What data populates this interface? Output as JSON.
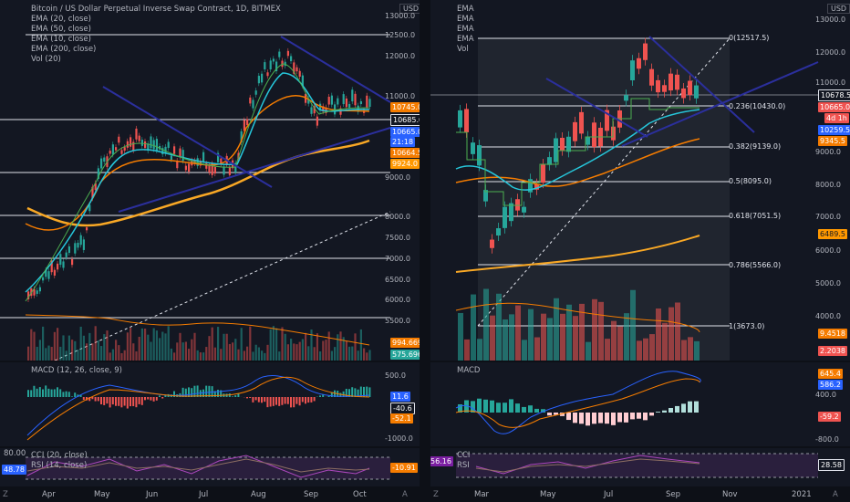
{
  "left": {
    "title": "Bitcoin / US Dollar Perpetual Inverse Swap Contract, 1D, BITMEX",
    "currency": "USD",
    "legend": [
      "EMA (20, close)",
      "EMA (50, close)",
      "EMA (10, close)",
      "EMA (200, close)",
      "Vol (20)"
    ],
    "price_ticks": [
      "13000.0",
      "12500.0",
      "12000.0",
      "11000.0",
      "9000.0",
      "8000.0",
      "7500.0",
      "7000.0",
      "6500.0",
      "6000.0",
      "5500.0"
    ],
    "price_tags": [
      {
        "text": "10745.0",
        "color": "#f57c00"
      },
      {
        "text": "10685.0",
        "color": "#131722"
      },
      {
        "text": "10665.0",
        "color": "#131722"
      },
      {
        "text": "21:18",
        "color": "#131722"
      },
      {
        "text": "10664.5",
        "color": "#f57c00"
      },
      {
        "text": "9924.0",
        "color": "#ff9800"
      },
      {
        "text": "994.669M",
        "color": "#f57c00"
      },
      {
        "text": "575.696M",
        "color": "#26a69a"
      }
    ],
    "macd_label": "MACD (12, 26, close, 9)",
    "macd_ticks": [
      "500.0",
      "-1000.0"
    ],
    "macd_tags": [
      {
        "text": "11.6",
        "color": "#2962ff"
      },
      {
        "text": "-40.6",
        "color": "#131722"
      },
      {
        "text": "-52.1",
        "color": "#f57c00"
      }
    ],
    "osc_label_1": "CCI (20, close)",
    "osc_label_2": "RSI (14, close)",
    "osc_left_top": "80.00",
    "osc_left_tag": "48.78",
    "osc_right_tag": "-10.91",
    "months": [
      "Apr",
      "May",
      "Jun",
      "Jul",
      "Aug",
      "Sep",
      "Oct"
    ]
  },
  "right": {
    "legend": [
      "EMA",
      "EMA",
      "EMA",
      "EMA",
      "Vol"
    ],
    "currency": "USD",
    "price_ticks": [
      "13000.0",
      "12000.0",
      "11000.0",
      "9000.0",
      "8000.0",
      "7000.0",
      "6000.0",
      "5000.0",
      "4000.0"
    ],
    "price_tags": [
      {
        "text": "10678.5",
        "color": "#131722"
      },
      {
        "text": "10665.0",
        "color": "#ef5350"
      },
      {
        "text": "4d 1h",
        "color": "#131722"
      },
      {
        "text": "10259.5",
        "color": "#2962ff"
      },
      {
        "text": "9345.5",
        "color": "#f57c00"
      },
      {
        "text": "6489.5",
        "color": "#ff9800"
      },
      {
        "text": "9.4518",
        "color": "#f57c00"
      },
      {
        "text": "2.2038",
        "color": "#ef5350"
      }
    ],
    "fib_levels": [
      "0(12517.5)",
      "0.236(10430.0)",
      "0.382(9139.0)",
      "0.5(8095.0)",
      "0.618(7051.5)",
      "0.786(5566.0)",
      "1(3673.0)"
    ],
    "macd_label": "MACD",
    "macd_ticks": [
      "400.0",
      "-800.0"
    ],
    "macd_tags": [
      {
        "text": "645.4",
        "color": "#f57c00"
      },
      {
        "text": "586.2",
        "color": "#2962ff"
      },
      {
        "text": "-59.2",
        "color": "#ef5350"
      }
    ],
    "osc_label_1": "CCI",
    "osc_label_2": "RSI",
    "osc_left_tag": "56.16",
    "osc_right_tag": "28.58",
    "months": [
      "Mar",
      "May",
      "Jul",
      "Sep",
      "Nov",
      "2021"
    ]
  },
  "bottom_icons": {
    "z": "Z",
    "a": "A"
  }
}
